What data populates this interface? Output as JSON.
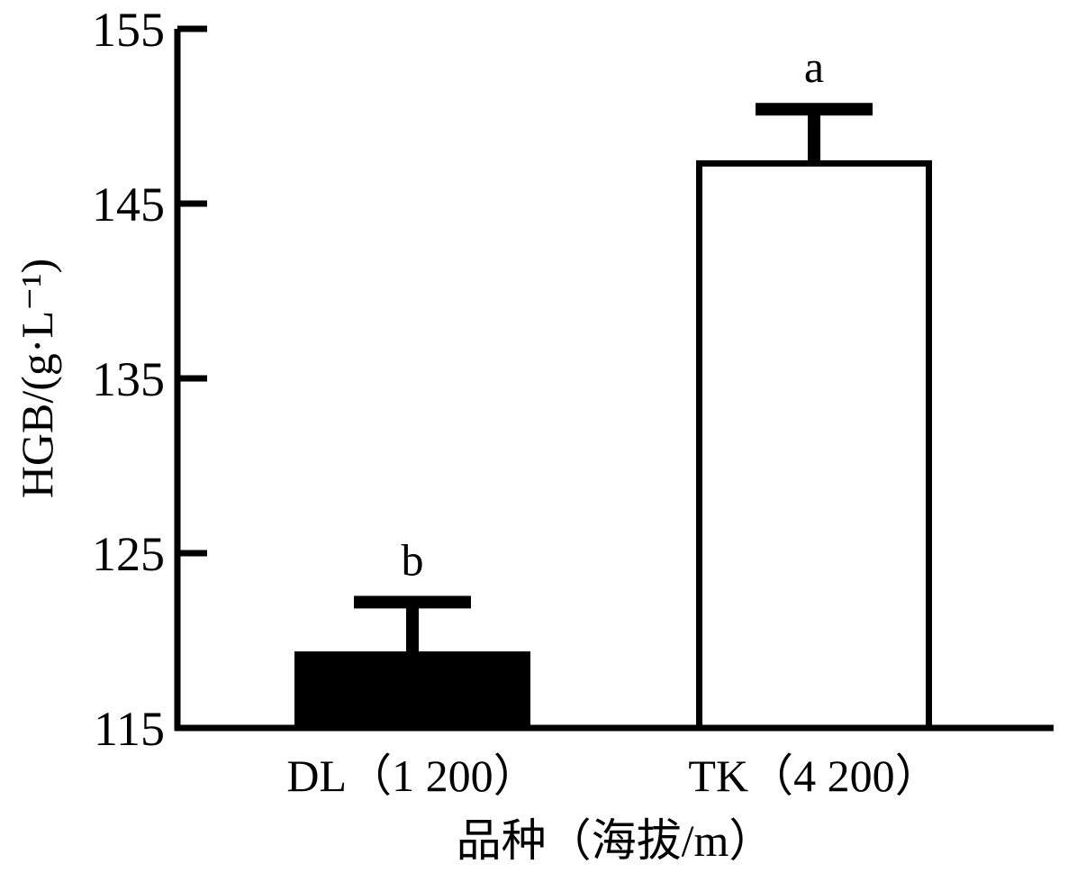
{
  "chart_data": {
    "type": "bar",
    "categories": [
      "DL（1 200）",
      "TK（4 200）"
    ],
    "values": [
      119.2,
      147.3
    ],
    "error_bars": [
      3.0,
      3.1
    ],
    "significance_labels": [
      "b",
      "a"
    ],
    "bar_fill_colors": [
      "#000000",
      "#ffffff"
    ],
    "bar_stroke_color": "#000000",
    "ylabel": "HGB/(g·L⁻¹)",
    "xlabel": "品种（海拔/m）",
    "ylim": [
      115,
      155
    ],
    "yticks": [
      115,
      125,
      135,
      145,
      155
    ],
    "grid": false
  }
}
